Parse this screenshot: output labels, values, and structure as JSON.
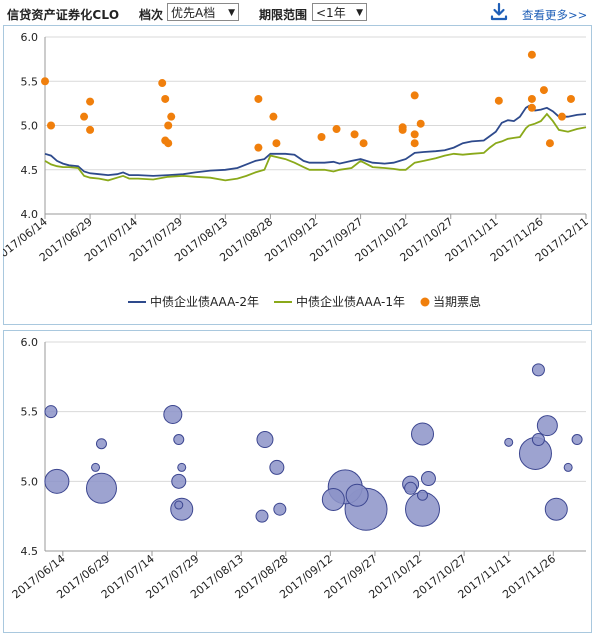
{
  "toolbar": {
    "title": "信贷资产证券化CLO",
    "tier_label": "档次",
    "tier_value": "优先A档",
    "term_label": "期限范围",
    "term_value": "<1年",
    "download_icon": "download-icon",
    "more_link": "查看更多>>"
  },
  "colors": {
    "series_2y": "#2e4a8c",
    "series_1y": "#8aa91a",
    "coupon": "#f07f0c",
    "bubble_fill": "#8c93c8",
    "bubble_stroke": "#3c4690",
    "panel_border": "#a9c8de",
    "grid": "#d9d9d9"
  },
  "chart_data": [
    {
      "type": "line",
      "ylim": [
        4.0,
        6.0
      ],
      "y_ticks": [
        "4.0",
        "4.5",
        "5.0",
        "5.5",
        "6.0"
      ],
      "x_range": [
        "2017-06-14",
        "2017-12-11"
      ],
      "x_ticks": [
        "2017/06/14",
        "2017/06/29",
        "2017/07/14",
        "2017/07/29",
        "2017/08/13",
        "2017/08/28",
        "2017/09/12",
        "2017/09/27",
        "2017/10/12",
        "2017/10/27",
        "2017/11/11",
        "2017/11/26",
        "2017/12/11"
      ],
      "grid": "horizontal",
      "legend_position": "bottom-center",
      "legend": [
        "中债企业债AAA-2年",
        "中债企业债AAA-1年",
        "当期票息"
      ],
      "series": [
        {
          "name": "中债企业债AAA-2年",
          "kind": "line",
          "points": [
            [
              "2017-06-14",
              4.68
            ],
            [
              "2017-06-16",
              4.66
            ],
            [
              "2017-06-18",
              4.6
            ],
            [
              "2017-06-20",
              4.57
            ],
            [
              "2017-06-22",
              4.55
            ],
            [
              "2017-06-25",
              4.54
            ],
            [
              "2017-06-27",
              4.48
            ],
            [
              "2017-06-29",
              4.46
            ],
            [
              "2017-07-02",
              4.45
            ],
            [
              "2017-07-05",
              4.44
            ],
            [
              "2017-07-08",
              4.45
            ],
            [
              "2017-07-10",
              4.47
            ],
            [
              "2017-07-12",
              4.44
            ],
            [
              "2017-07-15",
              4.44
            ],
            [
              "2017-07-20",
              4.43
            ],
            [
              "2017-07-25",
              4.44
            ],
            [
              "2017-07-30",
              4.45
            ],
            [
              "2017-08-03",
              4.47
            ],
            [
              "2017-08-08",
              4.49
            ],
            [
              "2017-08-13",
              4.5
            ],
            [
              "2017-08-17",
              4.52
            ],
            [
              "2017-08-20",
              4.56
            ],
            [
              "2017-08-23",
              4.6
            ],
            [
              "2017-08-26",
              4.62
            ],
            [
              "2017-08-28",
              4.68
            ],
            [
              "2017-09-02",
              4.68
            ],
            [
              "2017-09-05",
              4.67
            ],
            [
              "2017-09-08",
              4.6
            ],
            [
              "2017-09-10",
              4.58
            ],
            [
              "2017-09-15",
              4.58
            ],
            [
              "2017-09-18",
              4.59
            ],
            [
              "2017-09-20",
              4.57
            ],
            [
              "2017-09-24",
              4.6
            ],
            [
              "2017-09-27",
              4.62
            ],
            [
              "2017-10-01",
              4.58
            ],
            [
              "2017-10-05",
              4.57
            ],
            [
              "2017-10-08",
              4.58
            ],
            [
              "2017-10-10",
              4.6
            ],
            [
              "2017-10-12",
              4.62
            ],
            [
              "2017-10-15",
              4.69
            ],
            [
              "2017-10-18",
              4.7
            ],
            [
              "2017-10-22",
              4.71
            ],
            [
              "2017-10-25",
              4.72
            ],
            [
              "2017-10-28",
              4.75
            ],
            [
              "2017-10-31",
              4.8
            ],
            [
              "2017-11-03",
              4.82
            ],
            [
              "2017-11-07",
              4.83
            ],
            [
              "2017-11-09",
              4.88
            ],
            [
              "2017-11-11",
              4.93
            ],
            [
              "2017-11-13",
              5.03
            ],
            [
              "2017-11-15",
              5.06
            ],
            [
              "2017-11-17",
              5.05
            ],
            [
              "2017-11-19",
              5.1
            ],
            [
              "2017-11-21",
              5.2
            ],
            [
              "2017-11-22",
              5.22
            ],
            [
              "2017-11-24",
              5.17
            ],
            [
              "2017-11-26",
              5.18
            ],
            [
              "2017-11-28",
              5.2
            ],
            [
              "2017-11-30",
              5.16
            ],
            [
              "2017-12-02",
              5.1
            ],
            [
              "2017-12-05",
              5.1
            ],
            [
              "2017-12-08",
              5.12
            ],
            [
              "2017-12-11",
              5.13
            ]
          ]
        },
        {
          "name": "中债企业债AAA-1年",
          "kind": "line",
          "points": [
            [
              "2017-06-14",
              4.6
            ],
            [
              "2017-06-16",
              4.56
            ],
            [
              "2017-06-18",
              4.54
            ],
            [
              "2017-06-20",
              4.53
            ],
            [
              "2017-06-22",
              4.53
            ],
            [
              "2017-06-25",
              4.52
            ],
            [
              "2017-06-27",
              4.43
            ],
            [
              "2017-06-29",
              4.41
            ],
            [
              "2017-07-02",
              4.4
            ],
            [
              "2017-07-05",
              4.38
            ],
            [
              "2017-07-08",
              4.41
            ],
            [
              "2017-07-10",
              4.43
            ],
            [
              "2017-07-12",
              4.4
            ],
            [
              "2017-07-15",
              4.4
            ],
            [
              "2017-07-20",
              4.39
            ],
            [
              "2017-07-25",
              4.42
            ],
            [
              "2017-07-30",
              4.43
            ],
            [
              "2017-08-03",
              4.42
            ],
            [
              "2017-08-08",
              4.41
            ],
            [
              "2017-08-13",
              4.38
            ],
            [
              "2017-08-17",
              4.4
            ],
            [
              "2017-08-20",
              4.43
            ],
            [
              "2017-08-23",
              4.47
            ],
            [
              "2017-08-26",
              4.5
            ],
            [
              "2017-08-28",
              4.66
            ],
            [
              "2017-09-02",
              4.62
            ],
            [
              "2017-09-05",
              4.58
            ],
            [
              "2017-09-08",
              4.53
            ],
            [
              "2017-09-10",
              4.5
            ],
            [
              "2017-09-15",
              4.5
            ],
            [
              "2017-09-18",
              4.48
            ],
            [
              "2017-09-20",
              4.5
            ],
            [
              "2017-09-24",
              4.52
            ],
            [
              "2017-09-27",
              4.6
            ],
            [
              "2017-10-01",
              4.53
            ],
            [
              "2017-10-05",
              4.52
            ],
            [
              "2017-10-08",
              4.51
            ],
            [
              "2017-10-10",
              4.5
            ],
            [
              "2017-10-12",
              4.5
            ],
            [
              "2017-10-15",
              4.58
            ],
            [
              "2017-10-18",
              4.6
            ],
            [
              "2017-10-22",
              4.63
            ],
            [
              "2017-10-25",
              4.66
            ],
            [
              "2017-10-28",
              4.68
            ],
            [
              "2017-10-31",
              4.67
            ],
            [
              "2017-11-03",
              4.68
            ],
            [
              "2017-11-07",
              4.69
            ],
            [
              "2017-11-09",
              4.75
            ],
            [
              "2017-11-11",
              4.8
            ],
            [
              "2017-11-13",
              4.82
            ],
            [
              "2017-11-15",
              4.85
            ],
            [
              "2017-11-17",
              4.86
            ],
            [
              "2017-11-19",
              4.87
            ],
            [
              "2017-11-21",
              4.97
            ],
            [
              "2017-11-22",
              5.0
            ],
            [
              "2017-11-24",
              5.02
            ],
            [
              "2017-11-26",
              5.05
            ],
            [
              "2017-11-28",
              5.13
            ],
            [
              "2017-11-30",
              5.05
            ],
            [
              "2017-12-02",
              4.95
            ],
            [
              "2017-12-05",
              4.93
            ],
            [
              "2017-12-08",
              4.96
            ],
            [
              "2017-12-11",
              4.98
            ]
          ]
        },
        {
          "name": "当期票息",
          "kind": "scatter",
          "points": [
            [
              "2017-06-14",
              5.5
            ],
            [
              "2017-06-16",
              5.0
            ],
            [
              "2017-06-27",
              5.1
            ],
            [
              "2017-06-29",
              5.27
            ],
            [
              "2017-06-29",
              4.95
            ],
            [
              "2017-07-23",
              5.48
            ],
            [
              "2017-07-24",
              5.3
            ],
            [
              "2017-07-25",
              5.0
            ],
            [
              "2017-07-26",
              5.1
            ],
            [
              "2017-07-24",
              4.83
            ],
            [
              "2017-07-25",
              4.8
            ],
            [
              "2017-08-24",
              5.3
            ],
            [
              "2017-08-24",
              4.75
            ],
            [
              "2017-08-29",
              5.1
            ],
            [
              "2017-08-30",
              4.8
            ],
            [
              "2017-09-14",
              4.87
            ],
            [
              "2017-09-19",
              4.96
            ],
            [
              "2017-09-25",
              4.9
            ],
            [
              "2017-09-28",
              4.8
            ],
            [
              "2017-10-11",
              4.98
            ],
            [
              "2017-10-11",
              4.95
            ],
            [
              "2017-10-15",
              5.34
            ],
            [
              "2017-10-15",
              4.9
            ],
            [
              "2017-10-15",
              4.8
            ],
            [
              "2017-10-17",
              5.02
            ],
            [
              "2017-11-12",
              5.28
            ],
            [
              "2017-11-23",
              5.8
            ],
            [
              "2017-11-23",
              5.3
            ],
            [
              "2017-11-23",
              5.2
            ],
            [
              "2017-11-27",
              5.4
            ],
            [
              "2017-11-29",
              4.8
            ],
            [
              "2017-12-03",
              5.1
            ],
            [
              "2017-12-06",
              5.3
            ]
          ]
        }
      ]
    },
    {
      "type": "scatter",
      "subtype": "bubble",
      "ylim": [
        4.5,
        6.0
      ],
      "y_ticks": [
        "4.5",
        "5.0",
        "5.5",
        "6.0"
      ],
      "x_range": [
        "2017-06-08",
        "2017-12-07"
      ],
      "x_ticks": [
        "2017/06/14",
        "2017/06/29",
        "2017/07/14",
        "2017/07/29",
        "2017/08/13",
        "2017/08/28",
        "2017/09/12",
        "2017/09/27",
        "2017/10/12",
        "2017/10/27",
        "2017/11/11",
        "2017/11/26"
      ],
      "grid": "horizontal",
      "points": [
        {
          "x": "2017-06-10",
          "y": 5.5,
          "size": 6
        },
        {
          "x": "2017-06-12",
          "y": 5.0,
          "size": 12
        },
        {
          "x": "2017-06-25",
          "y": 5.1,
          "size": 4
        },
        {
          "x": "2017-06-27",
          "y": 5.27,
          "size": 5
        },
        {
          "x": "2017-06-27",
          "y": 4.95,
          "size": 15
        },
        {
          "x": "2017-07-21",
          "y": 5.48,
          "size": 9
        },
        {
          "x": "2017-07-23",
          "y": 5.3,
          "size": 5
        },
        {
          "x": "2017-07-23",
          "y": 5.0,
          "size": 7
        },
        {
          "x": "2017-07-24",
          "y": 5.1,
          "size": 4
        },
        {
          "x": "2017-07-23",
          "y": 4.83,
          "size": 4
        },
        {
          "x": "2017-07-24",
          "y": 4.8,
          "size": 11
        },
        {
          "x": "2017-08-21",
          "y": 5.3,
          "size": 8
        },
        {
          "x": "2017-08-20",
          "y": 4.75,
          "size": 6
        },
        {
          "x": "2017-08-25",
          "y": 5.1,
          "size": 7
        },
        {
          "x": "2017-08-26",
          "y": 4.8,
          "size": 6
        },
        {
          "x": "2017-09-13",
          "y": 4.87,
          "size": 11
        },
        {
          "x": "2017-09-17",
          "y": 4.96,
          "size": 17
        },
        {
          "x": "2017-09-21",
          "y": 4.9,
          "size": 11
        },
        {
          "x": "2017-09-24",
          "y": 4.8,
          "size": 21
        },
        {
          "x": "2017-10-09",
          "y": 4.98,
          "size": 8
        },
        {
          "x": "2017-10-09",
          "y": 4.95,
          "size": 6
        },
        {
          "x": "2017-10-13",
          "y": 5.34,
          "size": 11
        },
        {
          "x": "2017-10-13",
          "y": 4.9,
          "size": 5
        },
        {
          "x": "2017-10-13",
          "y": 4.8,
          "size": 17
        },
        {
          "x": "2017-10-15",
          "y": 5.02,
          "size": 7
        },
        {
          "x": "2017-11-11",
          "y": 5.28,
          "size": 4
        },
        {
          "x": "2017-11-21",
          "y": 5.8,
          "size": 6
        },
        {
          "x": "2017-11-21",
          "y": 5.3,
          "size": 6
        },
        {
          "x": "2017-11-20",
          "y": 5.2,
          "size": 16
        },
        {
          "x": "2017-11-24",
          "y": 5.4,
          "size": 10
        },
        {
          "x": "2017-11-27",
          "y": 4.8,
          "size": 11
        },
        {
          "x": "2017-12-01",
          "y": 5.1,
          "size": 4
        },
        {
          "x": "2017-12-04",
          "y": 5.3,
          "size": 5
        }
      ]
    }
  ]
}
